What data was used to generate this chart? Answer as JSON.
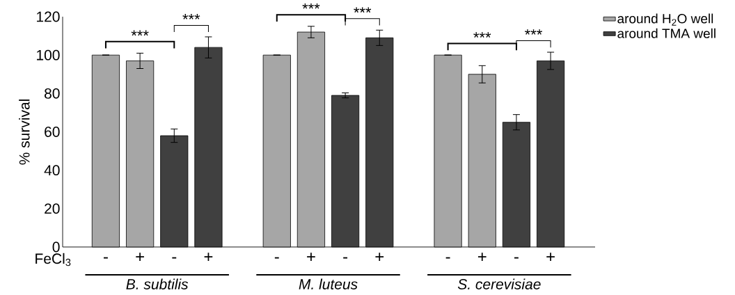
{
  "chart_data": {
    "type": "bar",
    "ylabel": "% survival",
    "xlabel": "FeCl$_{3}$",
    "categories": [
      "-",
      "+",
      "-",
      "+",
      null,
      "-",
      "+",
      "-",
      "+",
      null,
      "-",
      "+",
      "-",
      "+"
    ],
    "series": [
      {
        "name": "around H$_{2}$O well",
        "color": "#a6a6a6",
        "values": [
          100,
          97,
          null,
          null,
          null,
          100,
          112,
          null,
          null,
          null,
          100,
          90,
          null,
          null
        ],
        "errors": [
          0,
          4,
          null,
          null,
          null,
          0,
          3,
          null,
          null,
          null,
          0,
          4.5,
          null,
          null
        ]
      },
      {
        "name": "around TMA well",
        "color": "#404040",
        "values": [
          null,
          null,
          58,
          104,
          null,
          null,
          null,
          79,
          109,
          null,
          null,
          null,
          65,
          97
        ],
        "errors": [
          null,
          null,
          3.5,
          5.5,
          null,
          null,
          null,
          1.3,
          4,
          null,
          null,
          null,
          4,
          4.5
        ]
      }
    ],
    "ylim": [
      0,
      120
    ],
    "yticks": [
      0,
      20,
      40,
      60,
      80,
      100,
      120
    ],
    "legend": "top right",
    "annotations": [
      "B. subtilis",
      "M. luteus",
      "S. cerevisiae",
      "***",
      "***",
      "***",
      "***",
      "***",
      "***"
    ]
  }
}
